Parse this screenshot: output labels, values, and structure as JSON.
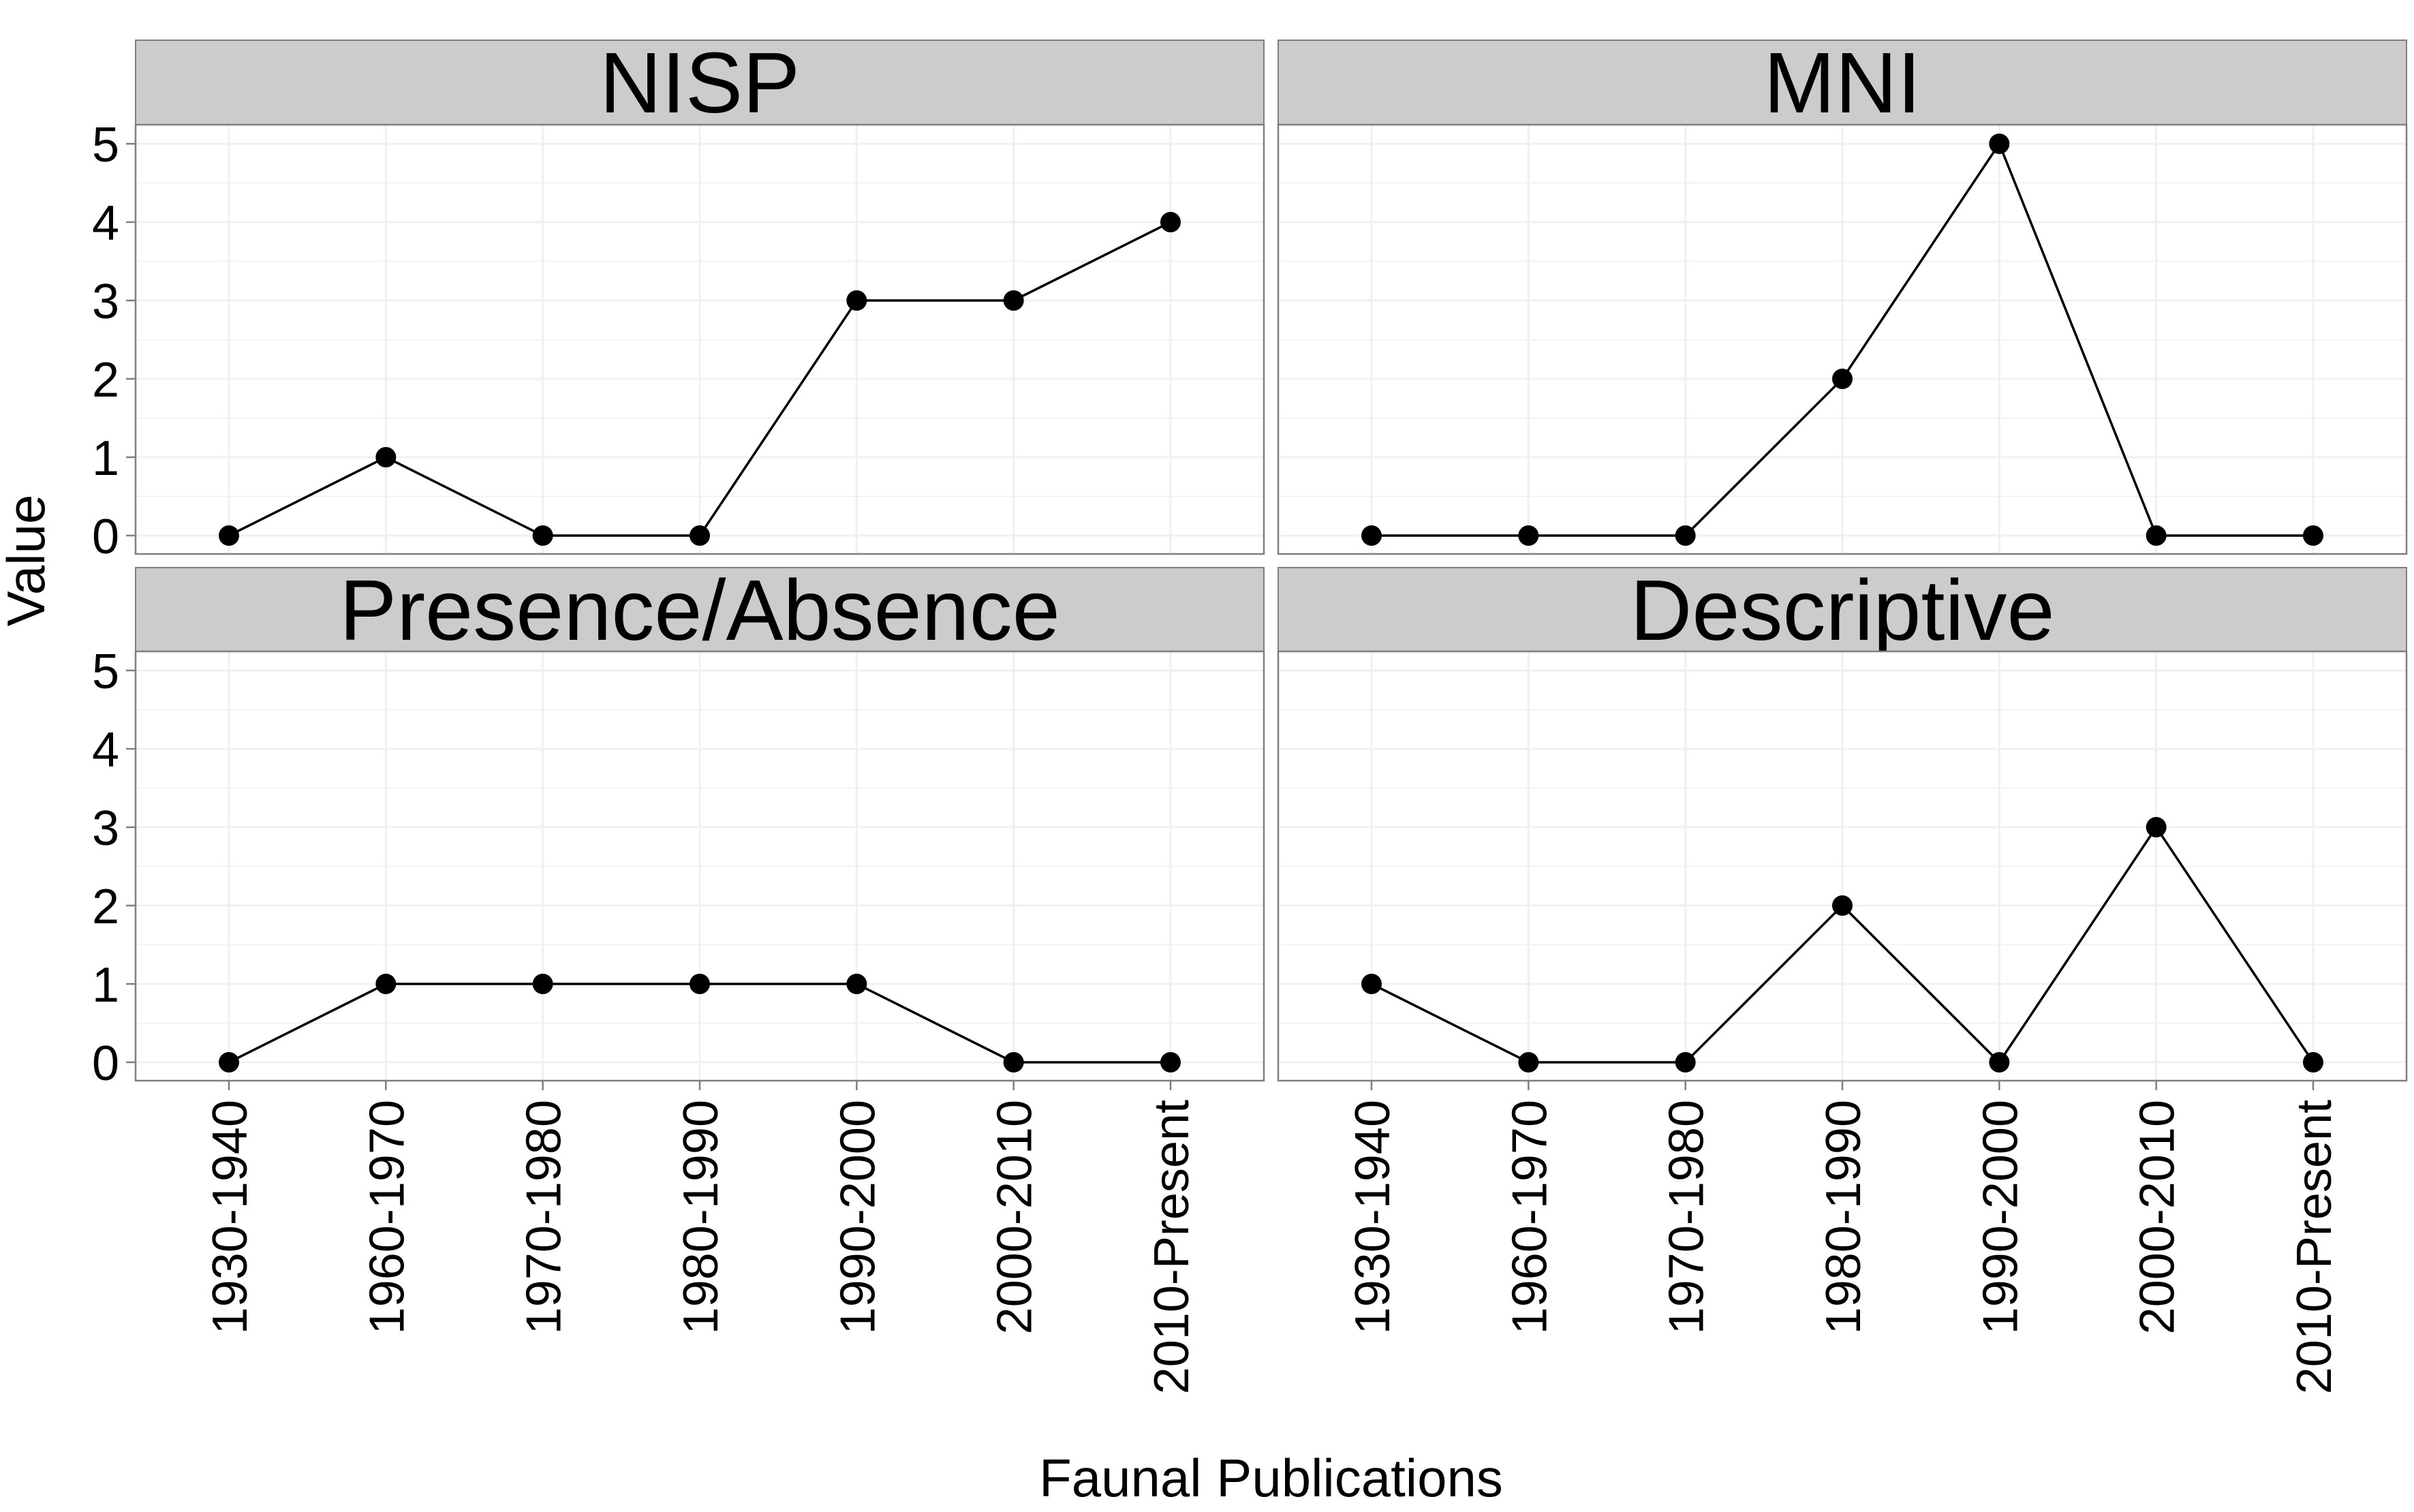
{
  "chart_data": {
    "type": "line",
    "facet": "2x2",
    "xlabel": "Faunal Publications",
    "ylabel": "Value",
    "ylim": [
      0,
      5
    ],
    "yticks": [
      0,
      1,
      2,
      3,
      4,
      5
    ],
    "categories": [
      "1930-1940",
      "1960-1970",
      "1970-1980",
      "1980-1990",
      "1990-2000",
      "2000-2010",
      "2010-Present"
    ],
    "panels": [
      {
        "title": "NISP",
        "values": [
          0,
          1,
          0,
          0,
          3,
          3,
          4
        ]
      },
      {
        "title": "MNI",
        "values": [
          0,
          0,
          0,
          2,
          5,
          0,
          0
        ]
      },
      {
        "title": "Presence/Absence",
        "values": [
          0,
          1,
          1,
          1,
          1,
          0,
          0
        ]
      },
      {
        "title": "Descriptive",
        "values": [
          1,
          0,
          0,
          2,
          0,
          3,
          0
        ]
      }
    ],
    "colors": {
      "strip": "#cccccc",
      "grid": "#f0f0f0",
      "border": "#7f7f7f",
      "line": "#000000",
      "point": "#000000"
    }
  }
}
